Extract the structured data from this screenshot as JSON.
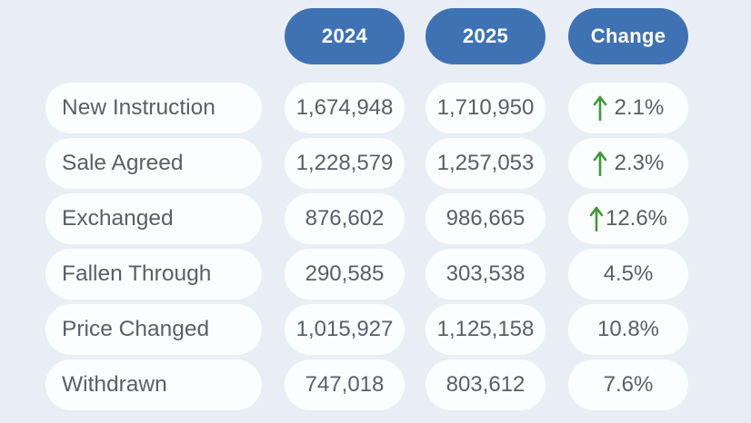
{
  "chart_data": {
    "type": "table",
    "columns": [
      "2024",
      "2025",
      "Change"
    ],
    "rows": [
      {
        "label": "New Instruction",
        "v2024": "1,674,948",
        "v2025": "1,710,950",
        "change": "2.1%",
        "trend": "up"
      },
      {
        "label": "Sale Agreed",
        "v2024": "1,228,579",
        "v2025": "1,257,053",
        "change": "2.3%",
        "trend": "up"
      },
      {
        "label": "Exchanged",
        "v2024": "876,602",
        "v2025": "986,665",
        "change": "12.6%",
        "trend": "up"
      },
      {
        "label": "Fallen Through",
        "v2024": "290,585",
        "v2025": "303,538",
        "change": "4.5%",
        "trend": "none"
      },
      {
        "label": "Price Changed",
        "v2024": "1,015,927",
        "v2025": "1,125,158",
        "change": "10.8%",
        "trend": "none"
      },
      {
        "label": "Withdrawn",
        "v2024": "747,018",
        "v2025": "803,612",
        "change": "7.6%",
        "trend": "none"
      }
    ]
  },
  "colors": {
    "header_bg": "#3f72b3",
    "header_text": "#ffffff",
    "row_bg": "#fcfdff",
    "text": "#5a5f66",
    "up_arrow": "#3f9a3a",
    "page_bg": "#e9eef5"
  }
}
